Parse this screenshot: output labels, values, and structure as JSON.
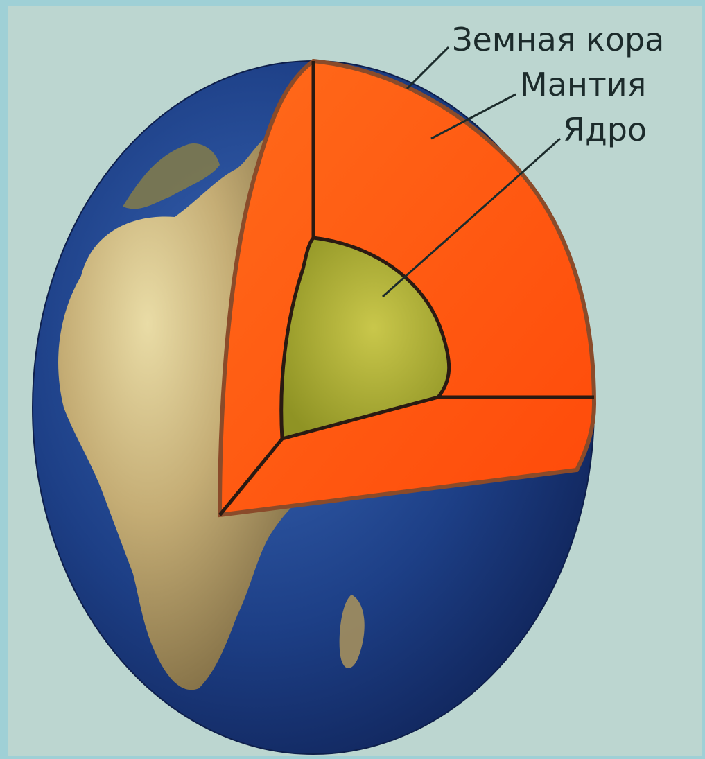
{
  "diagram": {
    "labels": {
      "crust": "Земная кора",
      "mantle": "Мантия",
      "core": "Ядро"
    }
  },
  "colors": {
    "background": "#bcd6d0",
    "frame": "#9fd0d6",
    "ocean": "#1d3f86",
    "land": "#b9a56a",
    "mantle": "#ff5a10",
    "core": "#b7b531",
    "crust_edge": "#8a4b2a"
  }
}
